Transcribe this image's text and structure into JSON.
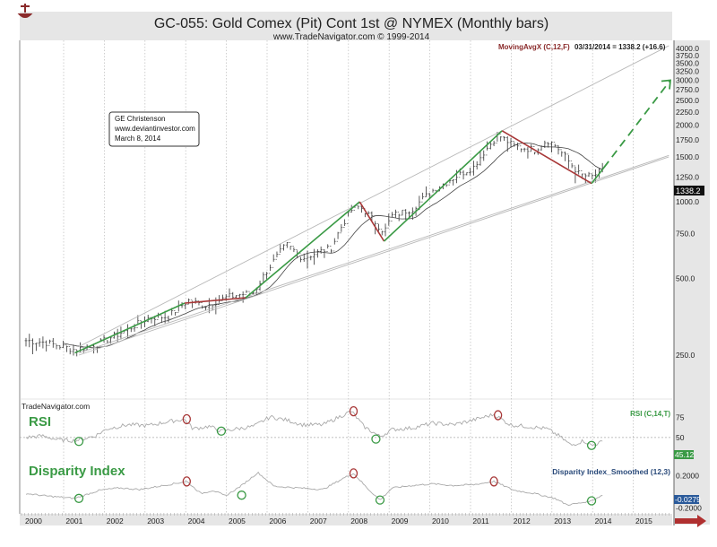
{
  "chart_data": [
    {
      "type": "ohlc",
      "title": "GC-055:  Gold Comex (Pit) Cont 1st @ NYMEX  (Monthly bars)",
      "subtitle": "www.TradeNavigator.com © 1999-2014",
      "annotation_box": [
        "GE Christenson",
        "www.deviantinvestor.com",
        "March 8, 2014"
      ],
      "indicator_label": "MovingAvgX (C,12,F)",
      "indicator_readout": "03/31/2014 = 1338.2 (+16.6)",
      "last_price_label": "1338.2",
      "yscale": "log",
      "ylim": [
        200,
        4000
      ],
      "y_ticks": [
        "4000.0",
        "3750.0",
        "3500.0",
        "3250.0",
        "3000.0",
        "2750.0",
        "2500.0",
        "2250.0",
        "2000.0",
        "1750.0",
        "1500.0",
        "1250.0",
        "1000.0",
        "750.0",
        "500.0",
        "250.0"
      ],
      "y_tick_values": [
        4000,
        3750,
        3500,
        3250,
        3000,
        2750,
        2500,
        2250,
        2000,
        1750,
        1500,
        1250,
        1000,
        750,
        500,
        250
      ],
      "x_ticks": [
        "2000",
        "2001",
        "2002",
        "2003",
        "2004",
        "2005",
        "2006",
        "2007",
        "2008",
        "2009",
        "2010",
        "2011",
        "2012",
        "2013",
        "2014",
        "2015"
      ],
      "price_keypoints": [
        {
          "t": 2000.0,
          "v": 285
        },
        {
          "t": 2000.5,
          "v": 280
        },
        {
          "t": 2001.2,
          "v": 262
        },
        {
          "t": 2001.8,
          "v": 278
        },
        {
          "t": 2002.5,
          "v": 315
        },
        {
          "t": 2003.0,
          "v": 350
        },
        {
          "t": 2003.5,
          "v": 355
        },
        {
          "t": 2004.0,
          "v": 410
        },
        {
          "t": 2004.4,
          "v": 390
        },
        {
          "t": 2005.0,
          "v": 425
        },
        {
          "t": 2005.6,
          "v": 440
        },
        {
          "t": 2006.0,
          "v": 560
        },
        {
          "t": 2006.4,
          "v": 680
        },
        {
          "t": 2006.8,
          "v": 600
        },
        {
          "t": 2007.5,
          "v": 660
        },
        {
          "t": 2008.0,
          "v": 930
        },
        {
          "t": 2008.2,
          "v": 960
        },
        {
          "t": 2008.8,
          "v": 760
        },
        {
          "t": 2009.0,
          "v": 880
        },
        {
          "t": 2009.5,
          "v": 940
        },
        {
          "t": 2010.0,
          "v": 1110
        },
        {
          "t": 2010.5,
          "v": 1240
        },
        {
          "t": 2011.0,
          "v": 1370
        },
        {
          "t": 2011.6,
          "v": 1830
        },
        {
          "t": 2012.0,
          "v": 1650
        },
        {
          "t": 2012.5,
          "v": 1600
        },
        {
          "t": 2012.8,
          "v": 1750
        },
        {
          "t": 2013.0,
          "v": 1670
        },
        {
          "t": 2013.4,
          "v": 1400
        },
        {
          "t": 2013.6,
          "v": 1280
        },
        {
          "t": 2013.9,
          "v": 1250
        },
        {
          "t": 2014.2,
          "v": 1338
        }
      ],
      "trend_lines": [
        {
          "name": "upper-channel",
          "color": "#b8b8b8",
          "points": [
            [
              2001.3,
              270
            ],
            [
              2015.8,
              4100
            ]
          ]
        },
        {
          "name": "lower-channel",
          "color": "#b8b8b8",
          "points": [
            [
              2001.3,
              255
            ],
            [
              2015.8,
              1520
            ]
          ]
        },
        {
          "name": "outer-lower-channel",
          "color": "#b8b8b8",
          "points": [
            [
              2001.3,
              250
            ],
            [
              2015.8,
              1500
            ]
          ]
        },
        {
          "name": "up-leg-1",
          "color": "#3a9a45",
          "points": [
            [
              2001.2,
              255
            ],
            [
              2003.9,
              400
            ]
          ]
        },
        {
          "name": "down-leg-1",
          "color": "#a83838",
          "points": [
            [
              2003.9,
              400
            ],
            [
              2005.4,
              420
            ]
          ]
        },
        {
          "name": "up-leg-2",
          "color": "#3a9a45",
          "points": [
            [
              2005.4,
              420
            ],
            [
              2008.2,
              1000
            ]
          ]
        },
        {
          "name": "down-leg-2",
          "color": "#a83838",
          "points": [
            [
              2008.2,
              1000
            ],
            [
              2008.8,
              700
            ]
          ]
        },
        {
          "name": "up-leg-3",
          "color": "#3a9a45",
          "points": [
            [
              2008.8,
              700
            ],
            [
              2011.7,
              1900
            ]
          ]
        },
        {
          "name": "down-leg-3",
          "color": "#a83838",
          "points": [
            [
              2011.7,
              1900
            ],
            [
              2013.9,
              1180
            ]
          ]
        },
        {
          "name": "up-leg-4",
          "color": "#3a9a45",
          "points": [
            [
              2013.9,
              1180
            ],
            [
              2014.2,
              1360
            ]
          ]
        }
      ],
      "projection": {
        "color": "#3a9a45",
        "from": [
          2014.2,
          1360
        ],
        "to": [
          2015.9,
          3000
        ],
        "style": "dashed-arrow"
      }
    },
    {
      "type": "line",
      "title": "RSI",
      "source_label": "TradeNavigator.com",
      "indicator_label": "RSI (C,14,T)",
      "last_value_label": "45.12",
      "y_ticks": [
        "75",
        "50"
      ],
      "y_tick_values": [
        75,
        50
      ],
      "ylim": [
        25,
        95
      ],
      "keypoints": [
        {
          "t": 2000.0,
          "v": 50
        },
        {
          "t": 2000.4,
          "v": 52
        },
        {
          "t": 2000.8,
          "v": 47
        },
        {
          "t": 2001.2,
          "v": 46
        },
        {
          "t": 2001.7,
          "v": 52
        },
        {
          "t": 2002.0,
          "v": 61
        },
        {
          "t": 2002.5,
          "v": 66
        },
        {
          "t": 2003.0,
          "v": 65
        },
        {
          "t": 2003.5,
          "v": 70
        },
        {
          "t": 2003.9,
          "v": 73
        },
        {
          "t": 2004.1,
          "v": 61
        },
        {
          "t": 2004.5,
          "v": 64
        },
        {
          "t": 2004.8,
          "v": 58
        },
        {
          "t": 2005.2,
          "v": 61
        },
        {
          "t": 2005.6,
          "v": 64
        },
        {
          "t": 2006.0,
          "v": 76
        },
        {
          "t": 2006.4,
          "v": 72
        },
        {
          "t": 2006.8,
          "v": 66
        },
        {
          "t": 2007.3,
          "v": 66
        },
        {
          "t": 2007.7,
          "v": 76
        },
        {
          "t": 2008.0,
          "v": 83
        },
        {
          "t": 2008.3,
          "v": 64
        },
        {
          "t": 2008.7,
          "v": 51
        },
        {
          "t": 2009.0,
          "v": 60
        },
        {
          "t": 2009.5,
          "v": 62
        },
        {
          "t": 2010.0,
          "v": 68
        },
        {
          "t": 2010.5,
          "v": 66
        },
        {
          "t": 2011.0,
          "v": 72
        },
        {
          "t": 2011.5,
          "v": 79
        },
        {
          "t": 2011.9,
          "v": 66
        },
        {
          "t": 2012.3,
          "v": 64
        },
        {
          "t": 2012.8,
          "v": 61
        },
        {
          "t": 2013.1,
          "v": 52
        },
        {
          "t": 2013.4,
          "v": 40
        },
        {
          "t": 2013.7,
          "v": 46
        },
        {
          "t": 2013.9,
          "v": 40
        },
        {
          "t": 2014.2,
          "v": 45
        }
      ],
      "markers": [
        {
          "t": 2001.3,
          "v": 45,
          "kind": "low",
          "color": "#3a9a45"
        },
        {
          "t": 2003.95,
          "v": 73,
          "kind": "high",
          "color": "#a83838"
        },
        {
          "t": 2004.8,
          "v": 58,
          "kind": "low",
          "color": "#3a9a45"
        },
        {
          "t": 2008.05,
          "v": 83,
          "kind": "high",
          "color": "#a83838"
        },
        {
          "t": 2008.6,
          "v": 48,
          "kind": "low",
          "color": "#3a9a45"
        },
        {
          "t": 2011.6,
          "v": 78,
          "kind": "high",
          "color": "#a83838"
        },
        {
          "t": 2013.9,
          "v": 40,
          "kind": "low",
          "color": "#3a9a45"
        }
      ]
    },
    {
      "type": "line",
      "title": "Disparity Index",
      "indicator_label": "Disparity Index_Smoothed (12,3)",
      "last_value_label": "-0.0279",
      "y_ticks": [
        "0.2000",
        "-0.2000"
      ],
      "y_tick_values": [
        0.2,
        -0.2
      ],
      "ylim": [
        -0.26,
        0.34
      ],
      "keypoints": [
        {
          "t": 2000.0,
          "v": -0.02
        },
        {
          "t": 2000.5,
          "v": -0.05
        },
        {
          "t": 2001.2,
          "v": -0.08
        },
        {
          "t": 2001.8,
          "v": 0.02
        },
        {
          "t": 2002.3,
          "v": 0.05
        },
        {
          "t": 2002.8,
          "v": 0.03
        },
        {
          "t": 2003.5,
          "v": 0.09
        },
        {
          "t": 2003.95,
          "v": 0.13
        },
        {
          "t": 2004.3,
          "v": -0.02
        },
        {
          "t": 2004.6,
          "v": 0.02
        },
        {
          "t": 2004.9,
          "v": -0.05
        },
        {
          "t": 2005.3,
          "v": 0.08
        },
        {
          "t": 2005.7,
          "v": 0.24
        },
        {
          "t": 2006.1,
          "v": 0.07
        },
        {
          "t": 2006.7,
          "v": 0.05
        },
        {
          "t": 2007.3,
          "v": 0.03
        },
        {
          "t": 2007.8,
          "v": 0.17
        },
        {
          "t": 2008.05,
          "v": 0.23
        },
        {
          "t": 2008.4,
          "v": 0.04
        },
        {
          "t": 2008.7,
          "v": -0.1
        },
        {
          "t": 2009.0,
          "v": 0.05
        },
        {
          "t": 2009.5,
          "v": 0.08
        },
        {
          "t": 2010.0,
          "v": 0.1
        },
        {
          "t": 2010.5,
          "v": 0.08
        },
        {
          "t": 2011.0,
          "v": 0.09
        },
        {
          "t": 2011.5,
          "v": 0.13
        },
        {
          "t": 2012.0,
          "v": 0.02
        },
        {
          "t": 2012.5,
          "v": -0.02
        },
        {
          "t": 2013.0,
          "v": -0.08
        },
        {
          "t": 2013.3,
          "v": -0.16
        },
        {
          "t": 2013.6,
          "v": -0.14
        },
        {
          "t": 2013.9,
          "v": -0.11
        },
        {
          "t": 2014.2,
          "v": -0.03
        }
      ],
      "markers": [
        {
          "t": 2001.3,
          "v": -0.08,
          "kind": "low",
          "color": "#3a9a45"
        },
        {
          "t": 2003.95,
          "v": 0.13,
          "kind": "high",
          "color": "#a83838"
        },
        {
          "t": 2005.3,
          "v": -0.04,
          "kind": "low",
          "color": "#3a9a45"
        },
        {
          "t": 2008.05,
          "v": 0.23,
          "kind": "high",
          "color": "#a83838"
        },
        {
          "t": 2008.7,
          "v": -0.1,
          "kind": "low",
          "color": "#3a9a45"
        },
        {
          "t": 2011.5,
          "v": 0.13,
          "kind": "high",
          "color": "#a83838"
        },
        {
          "t": 2013.9,
          "v": -0.11,
          "kind": "low",
          "color": "#3a9a45"
        }
      ]
    }
  ],
  "colors": {
    "bull": "#3a9a45",
    "bear": "#a83838",
    "label_green": "#3a9a45",
    "label_blue": "#2a5a9a",
    "axis_band": "#e4e4e4",
    "readout_red": "#8a2a2a"
  }
}
